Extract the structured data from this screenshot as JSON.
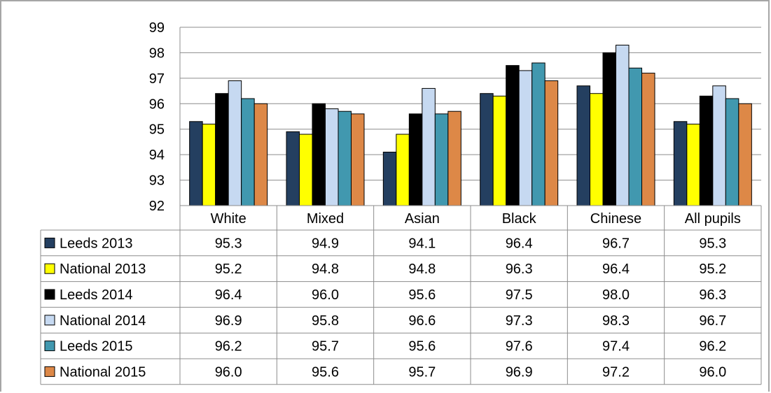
{
  "chart_data": {
    "type": "bar",
    "categories": [
      "White",
      "Mixed",
      "Asian",
      "Black",
      "Chinese",
      "All pupils"
    ],
    "ylim": [
      92,
      99
    ],
    "yticks": [
      "92",
      "93",
      "94",
      "95",
      "96",
      "97",
      "98",
      "99"
    ],
    "grid": true,
    "legend_placement": "data-table-left",
    "series": [
      {
        "name": "Leeds 2013",
        "color": "#243f60",
        "values": [
          95.3,
          94.9,
          94.1,
          96.4,
          96.7,
          95.3
        ],
        "labels": [
          "95.3",
          "94.9",
          "94.1",
          "96.4",
          "96.7",
          "95.3"
        ]
      },
      {
        "name": "National 2013",
        "color": "#ffff00",
        "values": [
          95.2,
          94.8,
          94.8,
          96.3,
          96.4,
          95.2
        ],
        "labels": [
          "95.2",
          "94.8",
          "94.8",
          "96.3",
          "96.4",
          "95.2"
        ]
      },
      {
        "name": "Leeds 2014",
        "color": "#000000",
        "values": [
          96.4,
          96.0,
          95.6,
          97.5,
          98.0,
          96.3
        ],
        "labels": [
          "96.4",
          "96.0",
          "95.6",
          "97.5",
          "98.0",
          "96.3"
        ]
      },
      {
        "name": "National 2014",
        "color": "#c6d9f1",
        "values": [
          96.9,
          95.8,
          96.6,
          97.3,
          98.3,
          96.7
        ],
        "labels": [
          "96.9",
          "95.8",
          "96.6",
          "97.3",
          "98.3",
          "96.7"
        ]
      },
      {
        "name": "Leeds 2015",
        "color": "#4198af",
        "values": [
          96.2,
          95.7,
          95.6,
          97.6,
          97.4,
          96.2
        ],
        "labels": [
          "96.2",
          "95.7",
          "95.6",
          "97.6",
          "97.4",
          "96.2"
        ]
      },
      {
        "name": "National 2015",
        "color": "#dd8847",
        "values": [
          96.0,
          95.6,
          95.7,
          96.9,
          97.2,
          96.0
        ],
        "labels": [
          "96.0",
          "95.6",
          "95.7",
          "96.9",
          "97.2",
          "96.0"
        ]
      }
    ]
  }
}
